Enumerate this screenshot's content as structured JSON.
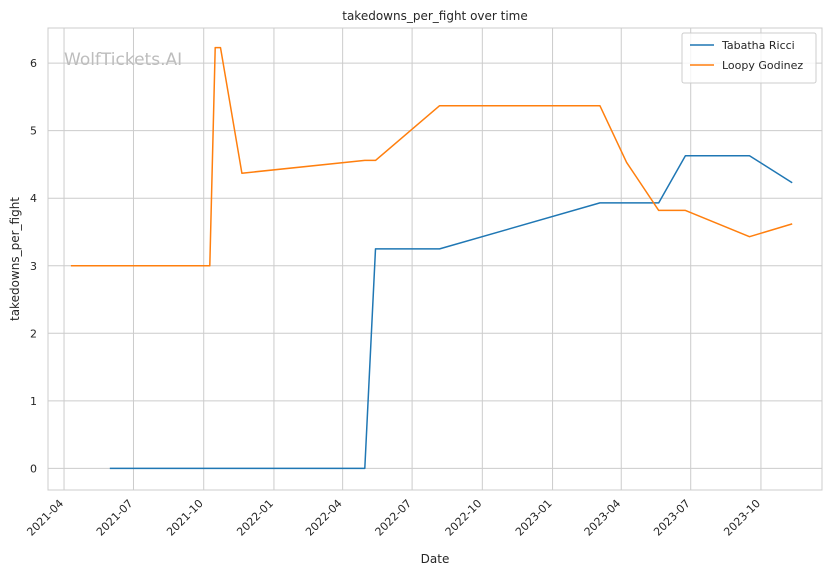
{
  "chart_data": {
    "type": "line",
    "title": "takedowns_per_fight over time",
    "xlabel": "Date",
    "ylabel": "takedowns_per_fight",
    "watermark": "WolfTickets.AI",
    "x_range": [
      "2021-03-11",
      "2023-12-20"
    ],
    "ylim": [
      -0.32,
      6.52
    ],
    "grid": true,
    "legend_position": "top-right",
    "x_ticks": [
      "2021-04-01",
      "2021-07-01",
      "2021-10-01",
      "2022-01-01",
      "2022-04-01",
      "2022-07-01",
      "2022-10-01",
      "2023-01-01",
      "2023-04-01",
      "2023-07-01",
      "2023-10-01"
    ],
    "x_tick_labels": [
      "2021-04",
      "2021-07",
      "2021-10",
      "2022-01",
      "2022-04",
      "2022-07",
      "2022-10",
      "2023-01",
      "2023-04",
      "2023-07",
      "2023-10"
    ],
    "y_ticks": [
      0,
      1,
      2,
      3,
      4,
      5,
      6
    ],
    "y_tick_labels": [
      "0",
      "1",
      "2",
      "3",
      "4",
      "5",
      "6"
    ],
    "series": [
      {
        "name": "Tabatha Ricci",
        "color": "#1f77b4",
        "points": [
          [
            "2021-05-31",
            0
          ],
          [
            "2022-04-30",
            0
          ],
          [
            "2022-05-14",
            3.25
          ],
          [
            "2022-08-06",
            3.25
          ],
          [
            "2023-03-04",
            3.93
          ],
          [
            "2023-05-20",
            3.93
          ],
          [
            "2023-06-24",
            4.63
          ],
          [
            "2023-09-16",
            4.63
          ],
          [
            "2023-11-11",
            4.23
          ]
        ]
      },
      {
        "name": "Loopy Godinez",
        "color": "#ff7f0e",
        "points": [
          [
            "2021-04-10",
            3.0
          ],
          [
            "2021-10-09",
            3.0
          ],
          [
            "2021-10-16",
            6.23
          ],
          [
            "2021-10-23",
            6.23
          ],
          [
            "2021-11-20",
            4.37
          ],
          [
            "2022-04-30",
            4.56
          ],
          [
            "2022-05-14",
            4.56
          ],
          [
            "2022-08-06",
            5.37
          ],
          [
            "2023-03-04",
            5.37
          ],
          [
            "2023-04-08",
            4.53
          ],
          [
            "2023-05-20",
            3.82
          ],
          [
            "2023-06-24",
            3.82
          ],
          [
            "2023-09-16",
            3.43
          ],
          [
            "2023-11-11",
            3.62
          ]
        ]
      }
    ]
  }
}
